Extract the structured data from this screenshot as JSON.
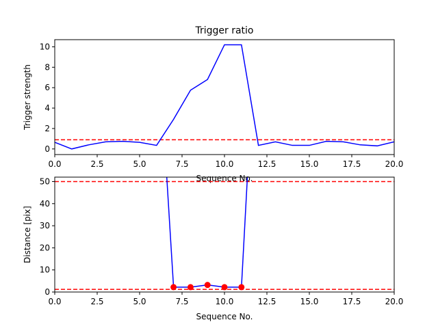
{
  "chart_data": [
    {
      "type": "line",
      "title": "Trigger ratio",
      "xlabel": "Sequence No.",
      "ylabel": "Trigger strength",
      "xlim": [
        0,
        20
      ],
      "ylim": [
        -0.55,
        10.7
      ],
      "xticks": [
        "0.0",
        "2.5",
        "5.0",
        "7.5",
        "10.0",
        "12.5",
        "15.0",
        "17.5",
        "20.0"
      ],
      "xtick_values": [
        0,
        2.5,
        5,
        7.5,
        10,
        12.5,
        15,
        17.5,
        20
      ],
      "yticks": [
        "0",
        "2",
        "4",
        "6",
        "8",
        "10"
      ],
      "ytick_values": [
        0,
        2,
        4,
        6,
        8,
        10
      ],
      "series": [
        {
          "color": "#0000ff",
          "style": "solid",
          "x": [
            0,
            1,
            2,
            3,
            4,
            5,
            6,
            7,
            8,
            9,
            10,
            11,
            12,
            13,
            14,
            15,
            16,
            17,
            18,
            19,
            20
          ],
          "y": [
            0.65,
            0.0,
            0.4,
            0.7,
            0.75,
            0.65,
            0.35,
            2.9,
            5.75,
            6.8,
            10.2,
            10.2,
            0.35,
            0.7,
            0.35,
            0.35,
            0.75,
            0.7,
            0.4,
            0.3,
            0.7
          ]
        }
      ],
      "hlines": [
        {
          "y": 0.9,
          "color": "#ff0000",
          "style": "dashed"
        }
      ],
      "grid": false
    },
    {
      "type": "line",
      "title": "",
      "xlabel": "Sequence No.",
      "ylabel": "Distance [pix]",
      "xlim": [
        0,
        20
      ],
      "ylim": [
        0,
        52
      ],
      "xticks": [
        "0.0",
        "2.5",
        "5.0",
        "7.5",
        "10.0",
        "12.5",
        "15.0",
        "17.5",
        "20.0"
      ],
      "xtick_values": [
        0,
        2.5,
        5,
        7.5,
        10,
        12.5,
        15,
        17.5,
        20
      ],
      "yticks": [
        "0",
        "10",
        "20",
        "30",
        "40",
        "50"
      ],
      "ytick_values": [
        0,
        10,
        20,
        30,
        40,
        50
      ],
      "series": [
        {
          "color": "#0000ff",
          "style": "solid",
          "x": [
            6.6,
            7,
            8,
            9,
            10,
            11,
            11.35
          ],
          "y": [
            52,
            2.2,
            2.2,
            3.2,
            2.2,
            2.2,
            52
          ]
        }
      ],
      "markers": {
        "color": "#ff0000",
        "x": [
          7,
          8,
          9,
          10,
          11
        ],
        "y": [
          2.2,
          2.2,
          3.2,
          2.2,
          2.2
        ]
      },
      "hlines": [
        {
          "y": 50,
          "color": "#ff0000",
          "style": "dashed"
        },
        {
          "y": 1.2,
          "color": "#ff0000",
          "style": "dashed"
        }
      ],
      "grid": false
    }
  ]
}
